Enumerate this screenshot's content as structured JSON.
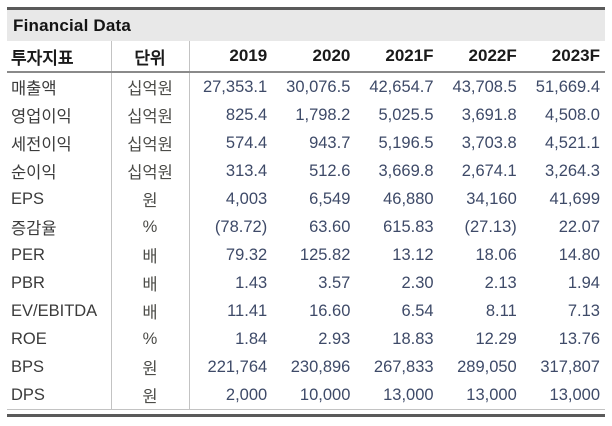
{
  "title": "Financial Data",
  "colors": {
    "title_bar_bg": "#e8e8e8",
    "heavy_rule": "#5a5a5a",
    "header_rule": "#8a8a8a",
    "light_rule": "#c3c3c3",
    "header_text": "#1a1a1a",
    "label_text": "#3b3b3b",
    "unit_text": "#4c4c48",
    "value_text": "#3e4a68"
  },
  "table": {
    "col_headers": [
      "투자지표",
      "단위",
      "2019",
      "2020",
      "2021F",
      "2022F",
      "2023F"
    ],
    "rows": [
      {
        "label": "매출액",
        "unit": "십억원",
        "values": [
          "27,353.1",
          "30,076.5",
          "42,654.7",
          "43,708.5",
          "51,669.4"
        ]
      },
      {
        "label": "영업이익",
        "unit": "십억원",
        "values": [
          "825.4",
          "1,798.2",
          "5,025.5",
          "3,691.8",
          "4,508.0"
        ]
      },
      {
        "label": "세전이익",
        "unit": "십억원",
        "values": [
          "574.4",
          "943.7",
          "5,196.5",
          "3,703.8",
          "4,521.1"
        ]
      },
      {
        "label": "순이익",
        "unit": "십억원",
        "values": [
          "313.4",
          "512.6",
          "3,669.8",
          "2,674.1",
          "3,264.3"
        ]
      },
      {
        "label": "EPS",
        "unit": "원",
        "values": [
          "4,003",
          "6,549",
          "46,880",
          "34,160",
          "41,699"
        ]
      },
      {
        "label": "증감율",
        "unit": "%",
        "values": [
          "(78.72)",
          "63.60",
          "615.83",
          "(27.13)",
          "22.07"
        ]
      },
      {
        "label": "PER",
        "unit": "배",
        "values": [
          "79.32",
          "125.82",
          "13.12",
          "18.06",
          "14.80"
        ]
      },
      {
        "label": "PBR",
        "unit": "배",
        "values": [
          "1.43",
          "3.57",
          "2.30",
          "2.13",
          "1.94"
        ]
      },
      {
        "label": "EV/EBITDA",
        "unit": "배",
        "values": [
          "11.41",
          "16.60",
          "6.54",
          "8.11",
          "7.13"
        ]
      },
      {
        "label": "ROE",
        "unit": "%",
        "values": [
          "1.84",
          "2.93",
          "18.83",
          "12.29",
          "13.76"
        ]
      },
      {
        "label": "BPS",
        "unit": "원",
        "values": [
          "221,764",
          "230,896",
          "267,833",
          "289,050",
          "317,807"
        ]
      },
      {
        "label": "DPS",
        "unit": "원",
        "values": [
          "2,000",
          "10,000",
          "13,000",
          "13,000",
          "13,000"
        ]
      }
    ]
  }
}
